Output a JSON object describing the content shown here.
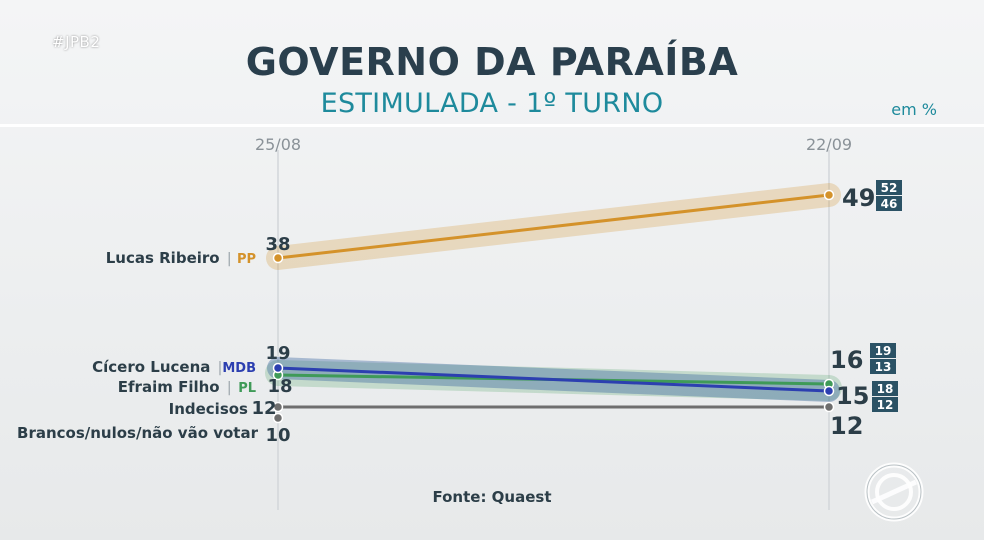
{
  "hashtag": "#JPB2",
  "header": {
    "title": "GOVERNO DA PARAÍBA",
    "subtitle": "ESTIMULADA - 1º TURNO",
    "unit": "em %"
  },
  "source": "Fonte: Quaest",
  "colors": {
    "lucas": "#d4922a",
    "cicero": "#2c3fb0",
    "efraim": "#3f9a58",
    "gray": "#6e6e6e",
    "range_box": "#2b5265"
  },
  "chart_data": {
    "type": "line",
    "x": [
      "25/08",
      "22/09"
    ],
    "ylim": [
      0,
      55
    ],
    "series": [
      {
        "key": "lucas",
        "name": "Lucas Ribeiro",
        "party": "PP",
        "values": [
          38,
          49
        ],
        "band": true,
        "last_label": "49",
        "range_end": {
          "high": "52",
          "low": "46"
        },
        "first_label": "38"
      },
      {
        "key": "cicero",
        "name": "Cícero Lucena",
        "party": "MDB",
        "values": [
          19,
          16
        ],
        "band": true,
        "last_label": "16",
        "range_end": {
          "high": "19",
          "low": "13"
        },
        "first_label": "19"
      },
      {
        "key": "efraim",
        "name": "Efraim Filho",
        "party": "PL",
        "values": [
          18,
          15
        ],
        "band": true,
        "last_label": "15",
        "range_end": {
          "high": "18",
          "low": "12"
        },
        "first_label": "18"
      },
      {
        "key": "indecisos",
        "name": "Indecisos",
        "party": "",
        "values": [
          12,
          12
        ],
        "band": false,
        "last_label": "12",
        "first_label": "12"
      },
      {
        "key": "brancos",
        "name": "Brancos/nulos/não vão votar",
        "party": "",
        "values": [
          10,
          null
        ],
        "band": false,
        "first_label": "10"
      }
    ]
  }
}
